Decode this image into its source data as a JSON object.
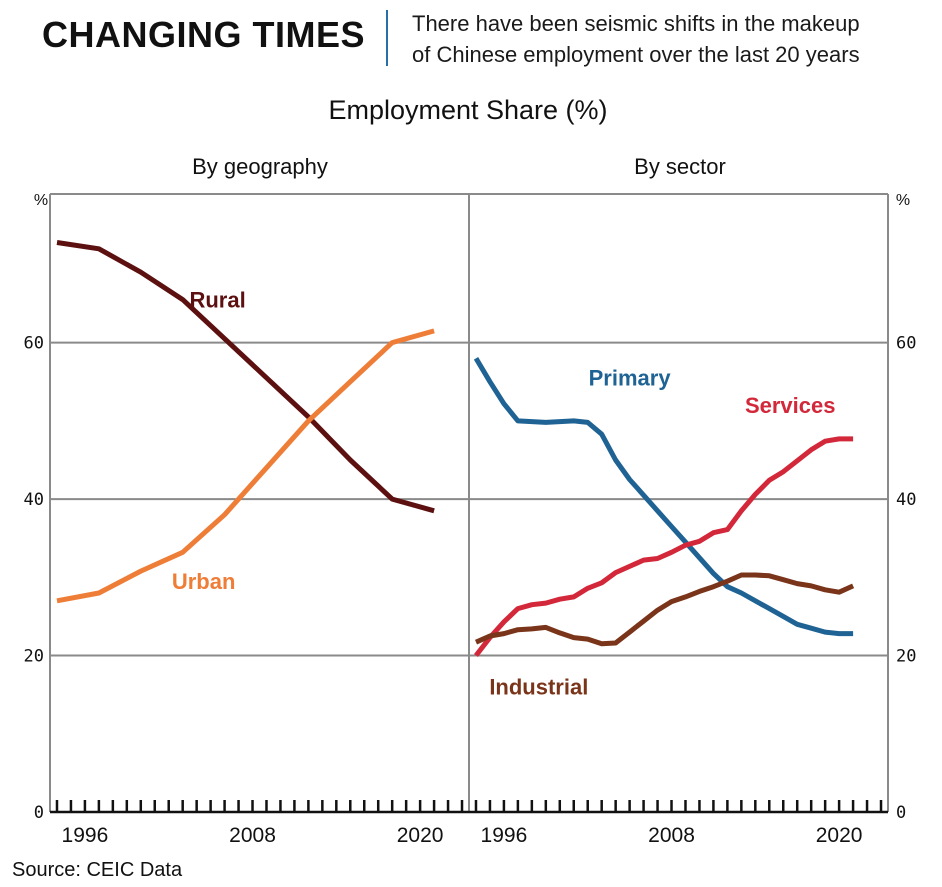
{
  "header": {
    "headline": "CHANGING TIMES",
    "standfirst_line1": "There have been seismic shifts in the makeup",
    "standfirst_line2": "of Chinese employment over the last 20 years"
  },
  "chart_title": "Employment Share (%)",
  "source": "Source: CEIC Data",
  "colors": {
    "rural": "#5c1010",
    "urban": "#ee7d37",
    "primary": "#1f6394",
    "services": "#d3273a",
    "industrial": "#7a3419"
  },
  "chart_data": [
    {
      "type": "line",
      "title": "By geography",
      "ylabel": "%",
      "ylim": [
        0,
        79
      ],
      "xlim": [
        1993.5,
        2023.5
      ],
      "x_ticks": [
        "1996",
        "2008",
        "2020"
      ],
      "y_ticks": [
        "0",
        "20",
        "40",
        "60"
      ],
      "grid": true,
      "series": [
        {
          "name": "Rural",
          "x": [
            1994,
            1997,
            2000,
            2003,
            2006,
            2009,
            2012,
            2015,
            2018,
            2021
          ],
          "values": [
            72.8,
            72.0,
            69.0,
            65.5,
            60.5,
            55.5,
            50.5,
            45.0,
            40.0,
            38.5
          ]
        },
        {
          "name": "Urban",
          "x": [
            1994,
            1997,
            2000,
            2003,
            2006,
            2009,
            2012,
            2015,
            2018,
            2021
          ],
          "values": [
            27.0,
            28.0,
            30.8,
            33.2,
            38.0,
            44.0,
            50.0,
            55.0,
            60.0,
            61.5
          ]
        }
      ]
    },
    {
      "type": "line",
      "title": "By sector",
      "ylabel": "%",
      "ylim": [
        0,
        79
      ],
      "xlim": [
        1993.5,
        2023.5
      ],
      "x_ticks": [
        "1996",
        "2008",
        "2020"
      ],
      "y_ticks": [
        "0",
        "20",
        "40",
        "60"
      ],
      "grid": true,
      "series": [
        {
          "name": "Primary",
          "x": [
            1994,
            1995,
            1996,
            1997,
            1998,
            1999,
            2000,
            2001,
            2002,
            2003,
            2004,
            2005,
            2006,
            2007,
            2008,
            2009,
            2010,
            2011,
            2012,
            2013,
            2014,
            2015,
            2016,
            2017,
            2018,
            2019,
            2020,
            2021
          ],
          "values": [
            58.0,
            55.0,
            52.2,
            50.0,
            49.9,
            49.8,
            49.9,
            50.0,
            49.8,
            48.3,
            45.0,
            42.5,
            40.5,
            38.5,
            36.5,
            34.5,
            32.5,
            30.5,
            28.8,
            28.0,
            27.0,
            26.0,
            25.0,
            24.0,
            23.5,
            23.0,
            22.8,
            22.8
          ]
        },
        {
          "name": "Services",
          "x": [
            1994,
            1995,
            1996,
            1997,
            1998,
            1999,
            2000,
            2001,
            2002,
            2003,
            2004,
            2005,
            2006,
            2007,
            2008,
            2009,
            2010,
            2011,
            2012,
            2013,
            2014,
            2015,
            2016,
            2017,
            2018,
            2019,
            2020,
            2021
          ],
          "values": [
            20.0,
            22.3,
            24.3,
            26.0,
            26.5,
            26.7,
            27.2,
            27.5,
            28.6,
            29.3,
            30.6,
            31.4,
            32.2,
            32.4,
            33.2,
            34.1,
            34.6,
            35.7,
            36.1,
            38.5,
            40.6,
            42.4,
            43.5,
            44.9,
            46.3,
            47.4,
            47.7,
            47.7
          ]
        },
        {
          "name": "Industrial",
          "x": [
            1994,
            1995,
            1996,
            1997,
            1998,
            1999,
            2000,
            2001,
            2002,
            2003,
            2004,
            2005,
            2006,
            2007,
            2008,
            2009,
            2010,
            2011,
            2012,
            2013,
            2014,
            2015,
            2016,
            2017,
            2018,
            2019,
            2020,
            2021
          ],
          "values": [
            21.7,
            22.5,
            22.8,
            23.3,
            23.4,
            23.6,
            22.9,
            22.3,
            22.1,
            21.5,
            21.6,
            23.0,
            24.4,
            25.8,
            26.9,
            27.5,
            28.2,
            28.8,
            29.5,
            30.3,
            30.3,
            30.2,
            29.7,
            29.2,
            28.9,
            28.4,
            28.1,
            28.9
          ]
        }
      ]
    }
  ]
}
